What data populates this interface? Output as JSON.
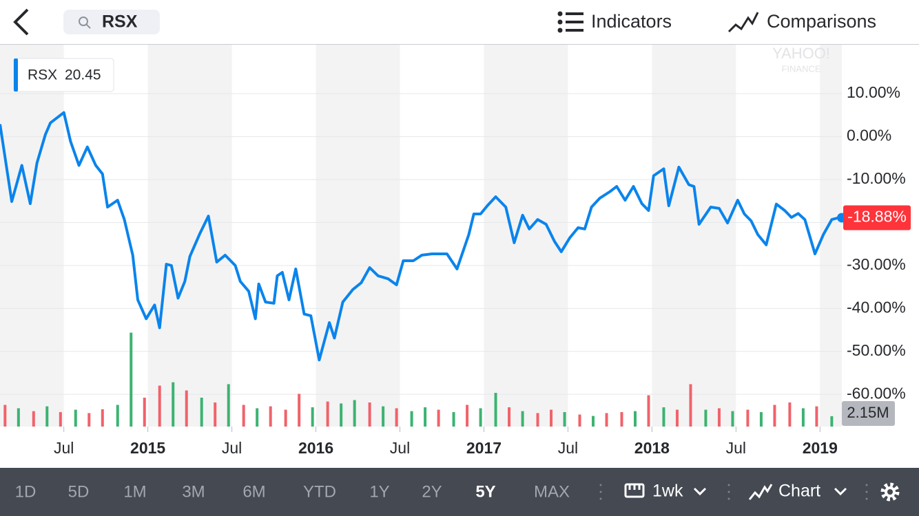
{
  "header": {
    "search": "RSX",
    "indicators": "Indicators",
    "comparisons": "Comparisons"
  },
  "legend": {
    "price": 20.45
  },
  "watermark": [
    "YAHOO!",
    "FINANCE"
  ],
  "chart_data": {
    "type": "line",
    "x": [
      2014.12,
      2014.19,
      2014.25,
      2014.3,
      2014.34,
      2014.39,
      2014.42,
      2014.5,
      2014.54,
      2014.59,
      2014.64,
      2014.69,
      2014.73,
      2014.76,
      2014.82,
      2014.86,
      2014.91,
      2014.94,
      2014.99,
      2015.04,
      2015.07,
      2015.11,
      2015.14,
      2015.18,
      2015.22,
      2015.25,
      2015.31,
      2015.36,
      2015.41,
      2015.46,
      2015.52,
      2015.55,
      2015.6,
      2015.64,
      2015.66,
      2015.7,
      2015.75,
      2015.77,
      2015.8,
      2015.84,
      2015.88,
      2015.93,
      2015.97,
      2016.02,
      2016.08,
      2016.11,
      2016.16,
      2016.22,
      2016.27,
      2016.32,
      2016.37,
      2016.43,
      2016.48,
      2016.52,
      2016.58,
      2016.63,
      2016.69,
      2016.74,
      2016.78,
      2016.84,
      2016.91,
      2016.94,
      2016.98,
      2017.02,
      2017.07,
      2017.13,
      2017.18,
      2017.23,
      2017.27,
      2017.32,
      2017.37,
      2017.42,
      2017.46,
      2017.51,
      2017.56,
      2017.6,
      2017.64,
      2017.69,
      2017.75,
      2017.79,
      2017.84,
      2017.89,
      2017.94,
      2017.98,
      2018.01,
      2018.07,
      2018.1,
      2018.16,
      2018.22,
      2018.25,
      2018.28,
      2018.35,
      2018.4,
      2018.45,
      2018.51,
      2018.55,
      2018.59,
      2018.63,
      2018.68,
      2018.74,
      2018.79,
      2018.83,
      2018.87,
      2018.91,
      2018.97,
      2019.02,
      2019.07,
      2019.11
    ],
    "series": [
      {
        "name": "RSX",
        "color": "#0a84ec",
        "values": [
          2.9,
          -15.1,
          -6.7,
          -15.6,
          -6.1,
          0.5,
          3.2,
          5.6,
          -1.1,
          -6.7,
          -2.4,
          -6.7,
          -8.7,
          -16.4,
          -14.8,
          -19.3,
          -27.6,
          -38.0,
          -42.4,
          -39.2,
          -44.5,
          -29.7,
          -30.0,
          -37.6,
          -33.7,
          -27.9,
          -22.5,
          -18.5,
          -29.2,
          -27.6,
          -30.0,
          -33.7,
          -36.0,
          -42.4,
          -34.3,
          -38.5,
          -38.8,
          -32.4,
          -31.6,
          -38.0,
          -30.8,
          -41.3,
          -41.7,
          -52.0,
          -43.3,
          -46.9,
          -38.5,
          -35.6,
          -34.0,
          -30.5,
          -32.4,
          -33.1,
          -34.5,
          -28.9,
          -28.9,
          -27.6,
          -27.3,
          -27.3,
          -27.3,
          -30.8,
          -22.8,
          -18.0,
          -18.0,
          -16.1,
          -14.0,
          -16.4,
          -24.7,
          -18.3,
          -21.5,
          -19.3,
          -20.4,
          -24.4,
          -26.8,
          -23.6,
          -21.2,
          -21.5,
          -16.4,
          -14.3,
          -12.8,
          -11.6,
          -14.8,
          -11.6,
          -15.6,
          -17.2,
          -9.1,
          -7.5,
          -16.1,
          -7.1,
          -11.2,
          -11.6,
          -20.4,
          -16.4,
          -16.7,
          -20.1,
          -14.8,
          -18.0,
          -19.6,
          -22.8,
          -25.2,
          -15.7,
          -17.2,
          -18.8,
          -17.9,
          -19.3,
          -27.3,
          -22.8,
          -19.3,
          -18.88
        ]
      }
    ],
    "current": {
      "value": -18.88,
      "label": "-18.88%",
      "color": "#ff333a"
    },
    "xlim": [
      2014.12,
      2019.13
    ],
    "ylim": [
      -67.5,
      21.4
    ],
    "xticks": [
      {
        "value": 2014.5,
        "label": "Jul"
      },
      2015,
      {
        "value": 2015.5,
        "label": "Jul"
      },
      2016,
      {
        "value": 2016.5,
        "label": "Jul"
      },
      2017,
      {
        "value": 2017.5,
        "label": "Jul"
      },
      2018,
      {
        "value": 2018.5,
        "label": "Jul"
      },
      2019
    ],
    "yticks": [
      {
        "value": 10,
        "label": "10.00%"
      },
      {
        "value": 0,
        "label": "0.00%"
      },
      {
        "value": -10,
        "label": "-10.00%"
      },
      {
        "value": -20,
        "label": "-20.00%"
      },
      {
        "value": -30,
        "label": "-30.00%"
      },
      {
        "value": -40,
        "label": "-40.00%"
      },
      {
        "value": -50,
        "label": "-50.00%"
      },
      {
        "value": -60,
        "label": "-60.00%"
      }
    ],
    "grid": true,
    "volume": {
      "x": [
        2014.15,
        2014.23,
        2014.32,
        2014.4,
        2014.48,
        2014.57,
        2014.65,
        2014.73,
        2014.82,
        2014.9,
        2014.98,
        2015.07,
        2015.15,
        2015.23,
        2015.32,
        2015.4,
        2015.48,
        2015.57,
        2015.65,
        2015.73,
        2015.82,
        2015.9,
        2015.98,
        2016.07,
        2016.15,
        2016.23,
        2016.32,
        2016.4,
        2016.48,
        2016.57,
        2016.65,
        2016.73,
        2016.82,
        2016.9,
        2016.98,
        2017.07,
        2017.15,
        2017.23,
        2017.32,
        2017.4,
        2017.48,
        2017.57,
        2017.65,
        2017.73,
        2017.82,
        2017.9,
        2017.98,
        2018.07,
        2018.15,
        2018.23,
        2018.32,
        2018.4,
        2018.48,
        2018.57,
        2018.65,
        2018.73,
        2018.82,
        2018.9,
        2018.98,
        2019.07
      ],
      "values": [
        4.5,
        3.8,
        3.2,
        4.2,
        3.0,
        3.5,
        2.8,
        3.6,
        4.5,
        19.5,
        6.0,
        8.5,
        9.2,
        7.5,
        6.0,
        5.0,
        8.8,
        4.5,
        3.8,
        4.2,
        3.5,
        6.8,
        4.0,
        5.2,
        4.8,
        5.5,
        5.0,
        4.2,
        3.8,
        3.2,
        4.0,
        3.5,
        3.0,
        4.5,
        3.8,
        7.0,
        4.0,
        3.2,
        2.8,
        3.5,
        3.0,
        2.5,
        2.2,
        2.8,
        3.0,
        3.2,
        6.5,
        4.0,
        3.5,
        8.8,
        3.5,
        3.8,
        3.2,
        3.5,
        3.0,
        4.5,
        5.0,
        3.8,
        4.2,
        2.15
      ],
      "direction": [
        "down",
        "up",
        "down",
        "up",
        "down",
        "up",
        "down",
        "down",
        "up",
        "up",
        "down",
        "down",
        "up",
        "down",
        "up",
        "down",
        "up",
        "down",
        "up",
        "down",
        "down",
        "down",
        "up",
        "down",
        "up",
        "up",
        "down",
        "up",
        "down",
        "up",
        "up",
        "down",
        "up",
        "down",
        "up",
        "up",
        "down",
        "up",
        "down",
        "down",
        "up",
        "down",
        "up",
        "down",
        "down",
        "up",
        "down",
        "up",
        "down",
        "down",
        "up",
        "down",
        "up",
        "down",
        "up",
        "down",
        "down",
        "up",
        "down",
        "up"
      ],
      "up_color": "#3cb371",
      "down_color": "#f0626a",
      "ylim": [
        0,
        20
      ],
      "current": {
        "value": 2.15,
        "label": "2.15M"
      }
    }
  },
  "range_bar": {
    "ranges": [
      "1D",
      "5D",
      "1M",
      "3M",
      "6M",
      "YTD",
      "1Y",
      "2Y",
      "5Y",
      "MAX"
    ],
    "selected": 8,
    "interval": "1wk",
    "chart_type": "Chart"
  }
}
